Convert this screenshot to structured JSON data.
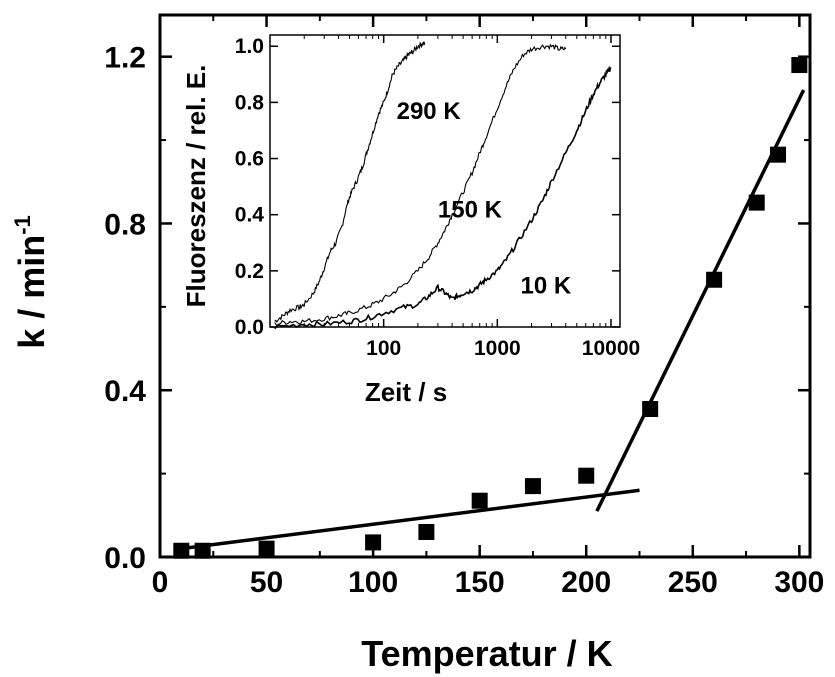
{
  "chart_data": [
    {
      "type": "scatter",
      "xlabel": "Temperatur / K",
      "ylabel_base": "k / min",
      "ylabel_sup": "-1",
      "xlim": [
        0,
        305
      ],
      "ylim": [
        0,
        1.3
      ],
      "x_ticks": [
        0,
        50,
        100,
        150,
        200,
        250,
        300
      ],
      "x_tick_labels": [
        "0",
        "50",
        "100",
        "150",
        "200",
        "250",
        "300"
      ],
      "y_ticks": [
        0,
        0.4,
        0.8,
        1.2
      ],
      "y_tick_labels": [
        "0.0",
        "0.4",
        "0.8",
        "1.2"
      ],
      "grid": false,
      "points": [
        {
          "x": 10,
          "y": 0.015
        },
        {
          "x": 20,
          "y": 0.015
        },
        {
          "x": 50,
          "y": 0.02
        },
        {
          "x": 100,
          "y": 0.035
        },
        {
          "x": 125,
          "y": 0.06
        },
        {
          "x": 150,
          "y": 0.135
        },
        {
          "x": 175,
          "y": 0.17
        },
        {
          "x": 200,
          "y": 0.195
        },
        {
          "x": 230,
          "y": 0.355
        },
        {
          "x": 260,
          "y": 0.665
        },
        {
          "x": 280,
          "y": 0.85
        },
        {
          "x": 290,
          "y": 0.965
        },
        {
          "x": 300,
          "y": 1.18
        }
      ],
      "fit_lines": [
        {
          "x1": 10,
          "y1": 0.02,
          "x2": 225,
          "y2": 0.16
        },
        {
          "x1": 205,
          "y1": 0.11,
          "x2": 302,
          "y2": 1.12
        }
      ]
    },
    {
      "type": "line",
      "xlabel": "Zeit / s",
      "ylabel": "Fluoreszenz / rel. E.",
      "x_scale": "log",
      "xlim": [
        10,
        12000
      ],
      "ylim": [
        0,
        1.04
      ],
      "x_ticks": [
        100,
        1000,
        10000
      ],
      "x_tick_labels": [
        "100",
        "1000",
        "10000"
      ],
      "y_ticks": [
        0,
        0.2,
        0.4,
        0.6,
        0.8,
        1.0
      ],
      "y_tick_labels": [
        "0.0",
        "0.2",
        "0.4",
        "0.6",
        "0.8",
        "1.0"
      ],
      "grid": false,
      "series": [
        {
          "name": "290 K",
          "x": [
            11,
            13,
            15,
            18,
            20,
            24,
            27,
            30,
            34,
            38,
            43,
            48,
            52,
            58,
            65,
            72,
            80,
            90,
            100,
            110,
            120,
            135,
            150,
            165,
            180,
            200,
            220,
            230
          ],
          "y": [
            0.02,
            0.04,
            0.06,
            0.07,
            0.08,
            0.12,
            0.16,
            0.21,
            0.27,
            0.3,
            0.36,
            0.44,
            0.48,
            0.52,
            0.57,
            0.63,
            0.69,
            0.76,
            0.8,
            0.85,
            0.9,
            0.93,
            0.95,
            0.97,
            0.98,
            1.0,
            1.01,
            1.01
          ]
        },
        {
          "name": "150 K",
          "x": [
            11,
            15,
            20,
            30,
            40,
            50,
            70,
            90,
            120,
            150,
            200,
            250,
            300,
            350,
            400,
            500,
            600,
            700,
            800,
            1000,
            1200,
            1400,
            1700,
            2000,
            2500,
            3000,
            3500,
            4000
          ],
          "y": [
            0.01,
            0.02,
            0.02,
            0.03,
            0.04,
            0.05,
            0.07,
            0.09,
            0.12,
            0.15,
            0.2,
            0.25,
            0.3,
            0.35,
            0.4,
            0.48,
            0.55,
            0.62,
            0.68,
            0.78,
            0.86,
            0.92,
            0.97,
            0.99,
            1.0,
            1.0,
            0.99,
            0.99
          ]
        },
        {
          "name": "10 K",
          "x": [
            11,
            20,
            30,
            50,
            70,
            100,
            150,
            200,
            250,
            300,
            350,
            400,
            450,
            500,
            600,
            700,
            800,
            1000,
            1200,
            1500,
            2000,
            2500,
            3000,
            4000,
            5000,
            6000,
            7000,
            8000,
            9000,
            10000
          ],
          "y": [
            0.0,
            0.01,
            0.01,
            0.02,
            0.03,
            0.05,
            0.07,
            0.08,
            0.11,
            0.14,
            0.12,
            0.1,
            0.11,
            0.12,
            0.13,
            0.15,
            0.17,
            0.2,
            0.24,
            0.3,
            0.38,
            0.45,
            0.52,
            0.62,
            0.7,
            0.77,
            0.83,
            0.87,
            0.9,
            0.92
          ]
        }
      ]
    }
  ]
}
